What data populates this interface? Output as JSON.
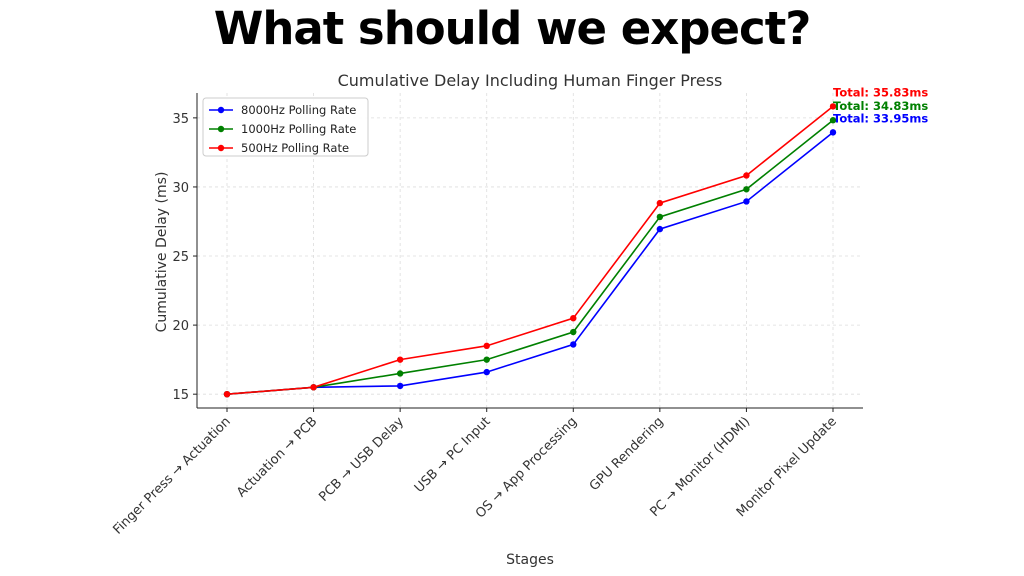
{
  "slide": {
    "title": "What should we expect?"
  },
  "chart_data": {
    "type": "line",
    "title": "Cumulative Delay Including Human Finger Press",
    "xlabel": "Stages",
    "ylabel": "Cumulative Delay (ms)",
    "categories": [
      "Finger Press → Actuation",
      "Actuation → PCB",
      "PCB → USB Delay",
      "USB → PC Input",
      "OS → App Processing",
      "GPU Rendering",
      "PC → Monitor (HDMI)",
      "Monitor Pixel Update"
    ],
    "ylim": [
      14,
      36.8
    ],
    "yticks": [
      15,
      20,
      25,
      30,
      35
    ],
    "grid": true,
    "legend_position": "top-left",
    "series": [
      {
        "name": "8000Hz Polling Rate",
        "color": "#0000ff",
        "values": [
          15.0,
          15.5,
          15.6,
          16.6,
          18.6,
          26.95,
          28.95,
          33.95
        ],
        "total_label": "Total: 33.95ms"
      },
      {
        "name": "1000Hz Polling Rate",
        "color": "#008000",
        "values": [
          15.0,
          15.5,
          16.5,
          17.5,
          19.5,
          27.83,
          29.83,
          34.83
        ],
        "total_label": "Total: 34.83ms"
      },
      {
        "name": "500Hz Polling Rate",
        "color": "#ff0000",
        "values": [
          15.0,
          15.5,
          17.5,
          18.5,
          20.5,
          28.83,
          30.83,
          35.83
        ],
        "total_label": "Total: 35.83ms"
      }
    ]
  }
}
